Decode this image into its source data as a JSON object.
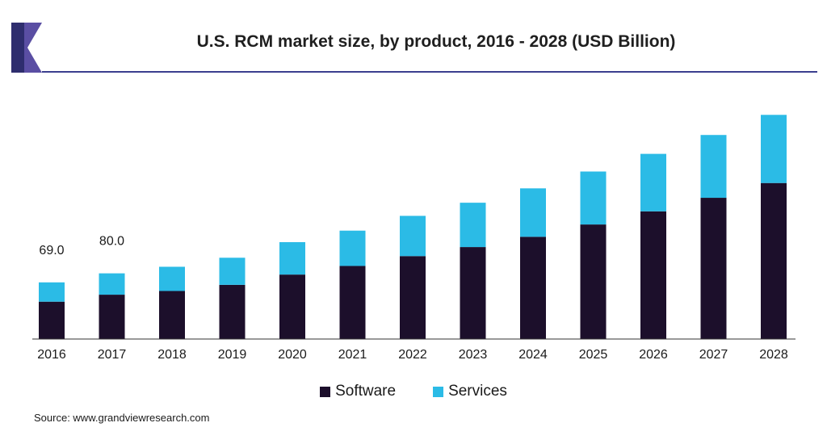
{
  "colors": {
    "software": "#1c0f2b",
    "services": "#2bbbe6",
    "axis": "#333333",
    "logo_dark": "#2e2d6e",
    "logo_light": "#5a4ea3"
  },
  "title": "U.S. RCM market size, by product, 2016 - 2028 (USD Billion)",
  "source": "Source: www.grandviewresearch.com",
  "chart_data": {
    "type": "bar",
    "stacked": true,
    "title": "U.S. RCM market size, by product, 2016 - 2028 (USD Billion)",
    "categories": [
      "2016",
      "2017",
      "2018",
      "2019",
      "2020",
      "2021",
      "2022",
      "2023",
      "2024",
      "2025",
      "2026",
      "2027",
      "2028"
    ],
    "series": [
      {
        "name": "Software",
        "values": [
          45.5,
          54.0,
          58.5,
          66.0,
          78.5,
          89.0,
          101.0,
          112.0,
          124.5,
          139.5,
          155.5,
          172.0,
          190.0
        ]
      },
      {
        "name": "Services",
        "values": [
          23.5,
          26.0,
          29.5,
          33.0,
          39.5,
          43.0,
          49.0,
          54.0,
          59.0,
          64.5,
          70.0,
          76.5,
          83.0
        ]
      }
    ],
    "data_labels": [
      {
        "category": "2016",
        "text": "69.0"
      },
      {
        "category": "2017",
        "text": "80.0"
      }
    ],
    "xlabel": "",
    "ylabel": "",
    "ylim": [
      0,
      290
    ],
    "grid": false,
    "legend_position": "bottom"
  }
}
